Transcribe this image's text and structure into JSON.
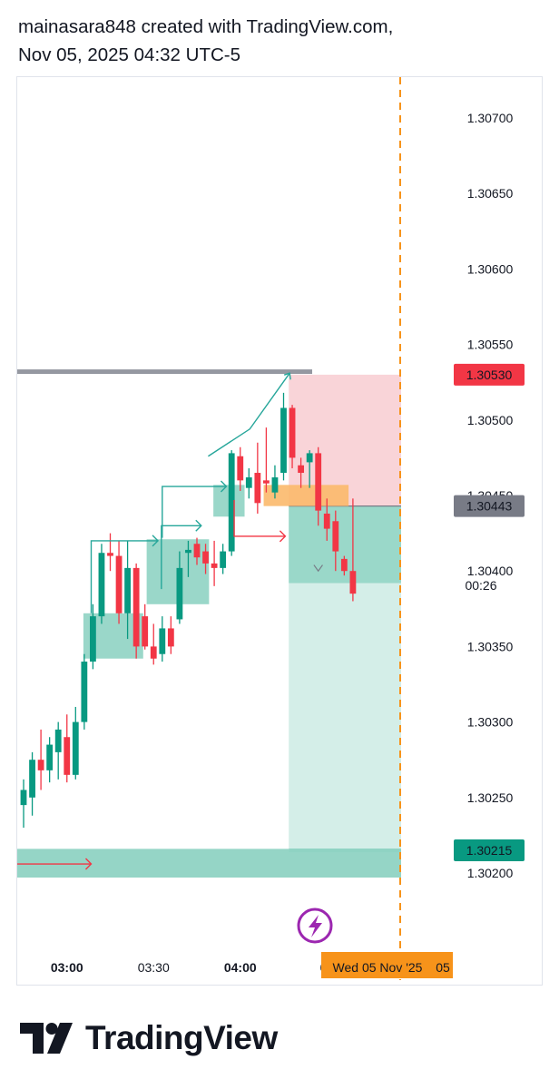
{
  "header": {
    "line1": "mainasara848 created with TradingView.com,",
    "line2": "Nov 05, 2025 04:32 UTC-5"
  },
  "footer": {
    "brand": "TradingView"
  },
  "colors": {
    "up": "#089981",
    "down": "#f23645",
    "grey_line": "#9598a1",
    "zone": "#8fd3c3",
    "stop": "#f9d2d6",
    "target": "#d2ede7",
    "orange": "#f7931a",
    "arrow": "#26a69a",
    "red_arrow": "#f23645",
    "purple": "#9c27b0"
  },
  "chart_data": {
    "type": "candlestick",
    "symbol_interval": "5m",
    "y_axis": {
      "range": [
        1.30192,
        1.30768
      ],
      "ticks": [
        "1.30700",
        "1.30650",
        "1.30600",
        "1.30550",
        "1.30500",
        "1.30450",
        "1.30400",
        "1.30350",
        "1.30300",
        "1.30250",
        "1.30200"
      ]
    },
    "x_axis": {
      "labels": [
        {
          "text": "03:00",
          "bold": true,
          "bar": 5
        },
        {
          "text": "03:30",
          "bold": false,
          "bar": 15
        },
        {
          "text": "04:00",
          "bold": true,
          "bar": 25
        },
        {
          "text": "04:3",
          "bold": false,
          "bar": 35
        }
      ],
      "current_date_label": "Wed 05 Nov '25",
      "current_date_suffix": "05"
    },
    "price_labels": [
      {
        "value": 1.3053,
        "text": "1.30530",
        "kind": "stop"
      },
      {
        "value": 1.30443,
        "text": "1.30443",
        "kind": "current"
      },
      {
        "value": 1.30215,
        "text": "1.30215",
        "kind": "target"
      }
    ],
    "countdown": "00:26",
    "candles": [
      {
        "o": 1.30245,
        "h": 1.30262,
        "l": 1.3023,
        "c": 1.30255
      },
      {
        "o": 1.3025,
        "h": 1.3028,
        "l": 1.30238,
        "c": 1.30275
      },
      {
        "o": 1.30275,
        "h": 1.30295,
        "l": 1.30255,
        "c": 1.30268
      },
      {
        "o": 1.30268,
        "h": 1.3029,
        "l": 1.3026,
        "c": 1.30285
      },
      {
        "o": 1.3028,
        "h": 1.303,
        "l": 1.30262,
        "c": 1.30295
      },
      {
        "o": 1.3029,
        "h": 1.30305,
        "l": 1.3026,
        "c": 1.30265
      },
      {
        "o": 1.30265,
        "h": 1.3031,
        "l": 1.30262,
        "c": 1.303
      },
      {
        "o": 1.303,
        "h": 1.30345,
        "l": 1.30295,
        "c": 1.3034
      },
      {
        "o": 1.3034,
        "h": 1.30378,
        "l": 1.30335,
        "c": 1.3037
      },
      {
        "o": 1.3037,
        "h": 1.30418,
        "l": 1.30365,
        "c": 1.30412
      },
      {
        "o": 1.30412,
        "h": 1.30425,
        "l": 1.304,
        "c": 1.3041
      },
      {
        "o": 1.3041,
        "h": 1.3042,
        "l": 1.30365,
        "c": 1.30372
      },
      {
        "o": 1.30372,
        "h": 1.3042,
        "l": 1.30355,
        "c": 1.30402
      },
      {
        "o": 1.30402,
        "h": 1.30405,
        "l": 1.30342,
        "c": 1.3035
      },
      {
        "o": 1.3037,
        "h": 1.30378,
        "l": 1.30348,
        "c": 1.3035
      },
      {
        "o": 1.3035,
        "h": 1.30365,
        "l": 1.30338,
        "c": 1.30342
      },
      {
        "o": 1.30345,
        "h": 1.3037,
        "l": 1.3034,
        "c": 1.30362
      },
      {
        "o": 1.30362,
        "h": 1.3037,
        "l": 1.30345,
        "c": 1.3035
      },
      {
        "o": 1.30368,
        "h": 1.30413,
        "l": 1.30365,
        "c": 1.30402
      },
      {
        "o": 1.30412,
        "h": 1.3042,
        "l": 1.30396,
        "c": 1.30414
      },
      {
        "o": 1.30418,
        "h": 1.30422,
        "l": 1.30404,
        "c": 1.30409
      },
      {
        "o": 1.30413,
        "h": 1.30418,
        "l": 1.30398,
        "c": 1.30405
      },
      {
        "o": 1.30405,
        "h": 1.3042,
        "l": 1.3039,
        "c": 1.30402
      },
      {
        "o": 1.30402,
        "h": 1.30418,
        "l": 1.30398,
        "c": 1.30413
      },
      {
        "o": 1.30413,
        "h": 1.3048,
        "l": 1.3041,
        "c": 1.30478
      },
      {
        "o": 1.30476,
        "h": 1.30482,
        "l": 1.30453,
        "c": 1.3046
      },
      {
        "o": 1.30455,
        "h": 1.30468,
        "l": 1.30448,
        "c": 1.30462
      },
      {
        "o": 1.30465,
        "h": 1.30485,
        "l": 1.30438,
        "c": 1.30445
      },
      {
        "o": 1.3046,
        "h": 1.30495,
        "l": 1.30452,
        "c": 1.30458
      },
      {
        "o": 1.30452,
        "h": 1.3047,
        "l": 1.30448,
        "c": 1.30462
      },
      {
        "o": 1.30465,
        "h": 1.30518,
        "l": 1.3046,
        "c": 1.30508
      },
      {
        "o": 1.30508,
        "h": 1.3051,
        "l": 1.30468,
        "c": 1.30475
      },
      {
        "o": 1.3047,
        "h": 1.30475,
        "l": 1.30455,
        "c": 1.30465
      },
      {
        "o": 1.30472,
        "h": 1.3048,
        "l": 1.30455,
        "c": 1.30478
      },
      {
        "o": 1.30478,
        "h": 1.30482,
        "l": 1.3043,
        "c": 1.3044
      },
      {
        "o": 1.30438,
        "h": 1.30448,
        "l": 1.3042,
        "c": 1.30428
      },
      {
        "o": 1.30433,
        "h": 1.3044,
        "l": 1.304,
        "c": 1.30413
      },
      {
        "o": 1.30408,
        "h": 1.3041,
        "l": 1.30397,
        "c": 1.304
      },
      {
        "o": 1.304,
        "h": 1.30448,
        "l": 1.3038,
        "c": 1.30385
      }
    ],
    "zones": [
      {
        "from_bar": 6.9,
        "to_bar": 13.8,
        "top": 1.30372,
        "bottom": 1.30342,
        "kind": "demand"
      },
      {
        "from_bar": 14.2,
        "to_bar": 21.4,
        "top": 1.30421,
        "bottom": 1.30378,
        "kind": "demand"
      },
      {
        "from_bar": 21.9,
        "to_bar": 25.5,
        "top": 1.30457,
        "bottom": 1.30436,
        "kind": "demand"
      }
    ],
    "position": {
      "type": "short",
      "entry": 1.30443,
      "stop": 1.3053,
      "target": 1.30215,
      "from_bar": 30.6,
      "to_bar": 43
    },
    "resistance_line": {
      "value": 1.30532,
      "from_bar": -2,
      "to_bar": 33.3
    },
    "support_zone": {
      "top": 1.30216,
      "bottom": 1.30197
    }
  }
}
